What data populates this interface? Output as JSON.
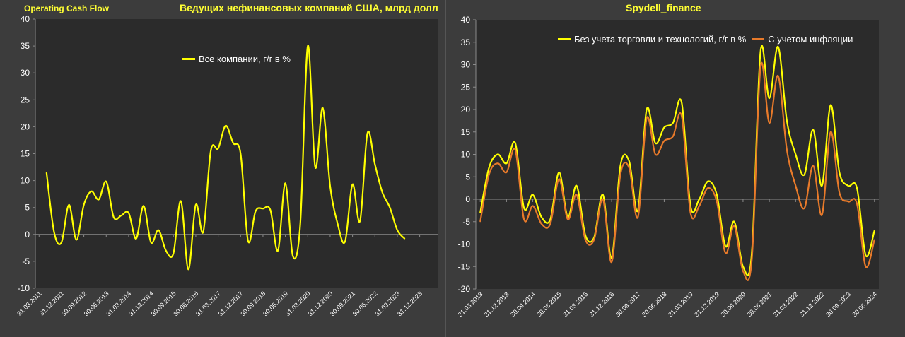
{
  "left_header": {
    "brand": "Operating Cash Flow",
    "title": "Ведущих нефинансовых компаний США, млрд долл"
  },
  "right_header": {
    "title": "Spydell_finance"
  },
  "colors": {
    "background": "#3c3c3c",
    "plot_bg": "#2b2b2b",
    "grid": "#5a5a5a",
    "yellow": "#ffff00",
    "orange": "#e87a2a",
    "header_text": "#ffff33"
  },
  "chart_data": [
    {
      "type": "line",
      "title": "",
      "ylim": [
        -10,
        40
      ],
      "yticks": [
        -10,
        -5,
        0,
        5,
        10,
        15,
        20,
        25,
        30,
        35,
        40
      ],
      "grid": false,
      "legend_position": "top-center",
      "tick_labels": [
        "31.03.2011",
        "31.12.2011",
        "30.09.2012",
        "30.06.2013",
        "31.03.2014",
        "31.12.2014",
        "30.09.2015",
        "30.06.2016",
        "31.03.2017",
        "31.12.2017",
        "30.09.2018",
        "30.06.2019",
        "31.03.2020",
        "31.12.2020",
        "30.09.2021",
        "30.06.2022",
        "31.03.2023",
        "31.12.2023"
      ],
      "tick_positions": [
        0,
        3,
        6,
        9,
        12,
        15,
        18,
        21,
        24,
        27,
        30,
        33,
        36,
        39,
        42,
        45,
        48,
        51
      ],
      "x_count": 54,
      "series": [
        {
          "name": "Все компании, г/г в %",
          "color": "#ffff00",
          "start_index": 1,
          "values": [
            11.5,
            0.5,
            -1.5,
            5.5,
            -1,
            5.5,
            8,
            6.5,
            9.8,
            3.2,
            3.5,
            4,
            -0.8,
            5.3,
            -1.5,
            0.8,
            -3,
            -3.5,
            6.2,
            -6.5,
            5.5,
            0.5,
            15.5,
            16,
            20.2,
            17,
            15,
            -1.2,
            4.3,
            4.8,
            4.5,
            -3,
            9.5,
            -4,
            2,
            35,
            12.5,
            23.5,
            9,
            2,
            -1.3,
            9.3,
            2.5,
            18.8,
            13,
            7.8,
            5,
            0.8,
            -0.8
          ]
        }
      ]
    },
    {
      "type": "line",
      "title": "",
      "ylim": [
        -20,
        40
      ],
      "yticks": [
        -20,
        -15,
        -10,
        -5,
        0,
        5,
        10,
        15,
        20,
        25,
        30,
        35,
        40
      ],
      "grid": false,
      "legend_position": "top-right",
      "tick_labels": [
        "31.03.2013",
        "31.12.2013",
        "30.09.2014",
        "30.06.2015",
        "31.03.2016",
        "31.12.2016",
        "30.09.2017",
        "30.06.2018",
        "31.03.2019",
        "31.12.2019",
        "30.09.2020",
        "30.06.2021",
        "31.03.2022",
        "31.12.2022",
        "30.09.2023",
        "30.06.2024"
      ],
      "tick_positions": [
        0,
        3,
        6,
        9,
        12,
        15,
        18,
        21,
        24,
        27,
        30,
        33,
        36,
        39,
        42,
        45
      ],
      "x_count": 46,
      "series": [
        {
          "name": "Без учета торговли и технологий, г/г в %",
          "color": "#ffff00",
          "start_index": 0,
          "values": [
            -3,
            7,
            10,
            8,
            12.5,
            -2,
            1,
            -4,
            -4.5,
            6,
            -4,
            3,
            -8,
            -8.5,
            1,
            -13,
            7.5,
            8.5,
            -2.5,
            20,
            12.5,
            16,
            17,
            21.5,
            -1.5,
            0,
            4,
            1,
            -10.5,
            -5,
            -15,
            -12,
            33,
            22.5,
            34,
            17.5,
            10,
            5.5,
            15.5,
            3,
            21,
            6,
            3,
            2.5,
            -12.5,
            -7
          ]
        },
        {
          "name": "С учетом инфляции",
          "color": "#e87a2a",
          "start_index": 0,
          "values": [
            -5,
            5.5,
            8,
            6,
            11,
            -4.5,
            -1.5,
            -5.5,
            -5.5,
            4.5,
            -4.5,
            1,
            -9,
            -9,
            0,
            -14,
            5.5,
            7,
            -4,
            18,
            10,
            13,
            14,
            18.5,
            -3,
            -1.5,
            2.5,
            -0.5,
            -12,
            -6,
            -16,
            -13.5,
            29.5,
            17,
            27.5,
            11,
            3,
            -2,
            7.5,
            -3.5,
            15,
            1.5,
            -0.5,
            -1,
            -15,
            -9
          ]
        }
      ]
    }
  ]
}
